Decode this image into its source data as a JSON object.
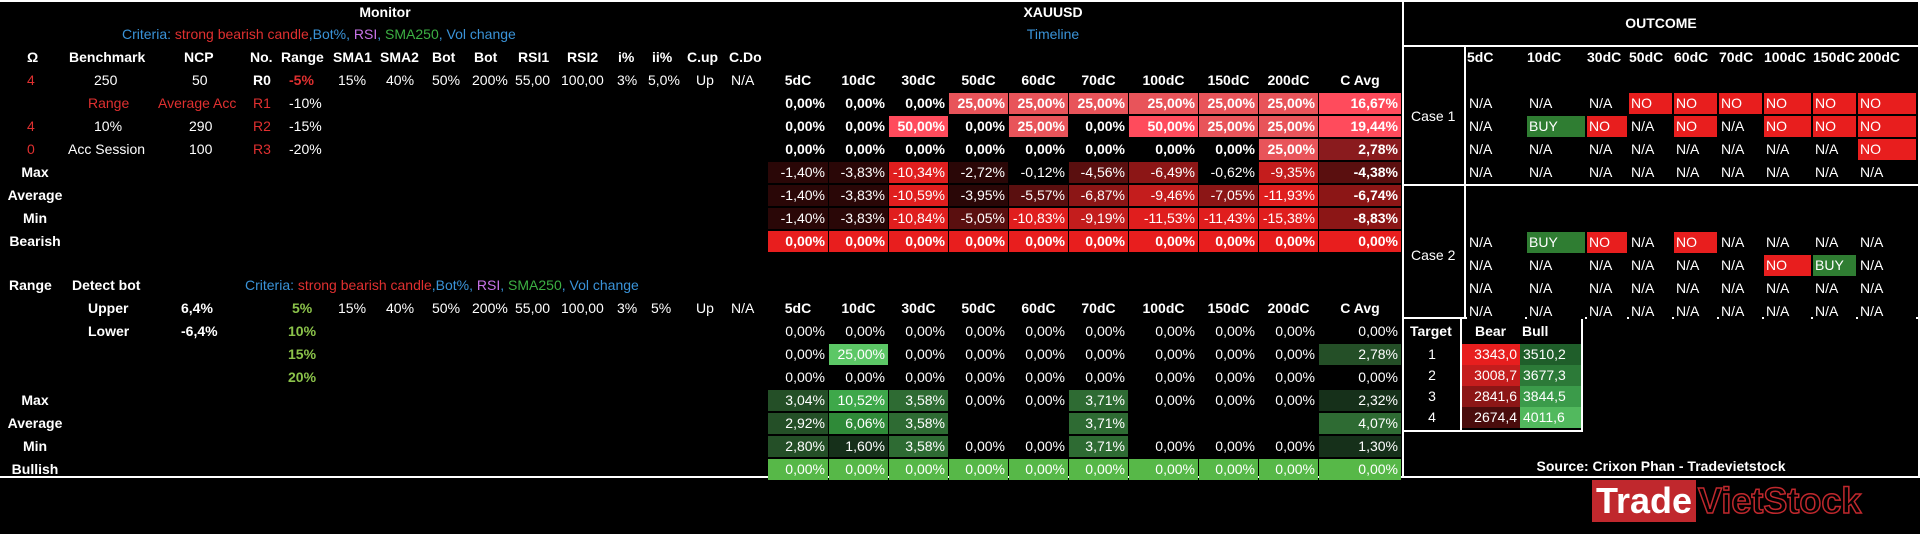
{
  "monitor": {
    "title": "Monitor",
    "criteria": [
      {
        "text": "Criteria: ",
        "color": "#3a93d8"
      },
      {
        "text": "strong bearish candle",
        "color": "#e03030"
      },
      {
        "text": ",Bot%, ",
        "color": "#3a93d8"
      },
      {
        "text": "RSI",
        "color": "#c873e8"
      },
      {
        "text": ", ",
        "color": "#3a93d8"
      },
      {
        "text": "SMA250",
        "color": "#3cb043"
      },
      {
        "text": ", Vol change",
        "color": "#3a93d8"
      }
    ],
    "headers": [
      "Ω",
      "Benchmark",
      "NCP",
      "No.",
      "Range",
      "SMA1",
      "SMA2",
      "Bot",
      "Bot",
      "RSI1",
      "RSI2",
      "i%",
      "ii%",
      "C.up",
      "C.Do"
    ],
    "row0": [
      "4",
      "250",
      "50",
      "R0",
      "-5%",
      "15%",
      "40%",
      "50%",
      "200%",
      "55,00",
      "100,00",
      "3%",
      "5,0%",
      "Up",
      "N/A"
    ],
    "row1": [
      "",
      "Range",
      "Average Acc",
      "R1",
      "-10%"
    ],
    "row2": [
      "4",
      "10%",
      "290",
      "R2",
      "-15%"
    ],
    "row3": [
      "0",
      "Acc Session",
      "100",
      "R3",
      "-20%"
    ],
    "stat_labels": [
      "Max",
      "Average",
      "Min",
      "Bearish"
    ]
  },
  "detect": {
    "headers": [
      "Range",
      "Detect bot"
    ],
    "criteria": [
      {
        "text": "Criteria: ",
        "color": "#3a93d8"
      },
      {
        "text": "strong bearish candle",
        "color": "#e03030"
      },
      {
        "text": ",Bot%, ",
        "color": "#3a93d8"
      },
      {
        "text": "RSI",
        "color": "#c873e8"
      },
      {
        "text": ", ",
        "color": "#3a93d8"
      },
      {
        "text": "SMA250",
        "color": "#3cb043"
      },
      {
        "text": ", Vol change",
        "color": "#3a93d8"
      }
    ],
    "upper_label": "Upper",
    "upper_value": "6,4%",
    "lower_label": "Lower",
    "lower_value": "-6,4%",
    "levels": [
      "5%",
      "10%",
      "15%",
      "20%"
    ],
    "params": [
      "15%",
      "40%",
      "50%",
      "200%",
      "55,00",
      "100,00",
      "3%",
      "5%",
      "Up",
      "N/A"
    ],
    "stat_labels": [
      "Max",
      "Average",
      "Min",
      "Bullish"
    ]
  },
  "xauusd": {
    "title": "XAUUSD",
    "subtitle": "Timeline",
    "columns": [
      "5dC",
      "10dC",
      "30dC",
      "50dC",
      "60dC",
      "70dC",
      "100dC",
      "150dC",
      "200dC",
      "C Avg"
    ],
    "bear_rows": [
      [
        "0,00%",
        "0,00%",
        "0,00%",
        "25,00%",
        "25,00%",
        "25,00%",
        "25,00%",
        "25,00%",
        "25,00%",
        "16,67%"
      ],
      [
        "0,00%",
        "0,00%",
        "50,00%",
        "0,00%",
        "25,00%",
        "0,00%",
        "50,00%",
        "25,00%",
        "25,00%",
        "19,44%"
      ],
      [
        "0,00%",
        "0,00%",
        "0,00%",
        "0,00%",
        "0,00%",
        "0,00%",
        "0,00%",
        "0,00%",
        "25,00%",
        "2,78%"
      ]
    ],
    "bear_stats": [
      [
        "-1,40%",
        "-3,83%",
        "-10,34%",
        "-2,72%",
        "-0,12%",
        "-4,56%",
        "-6,49%",
        "-0,62%",
        "-9,35%",
        "-4,38%"
      ],
      [
        "-1,40%",
        "-3,83%",
        "-10,59%",
        "-3,95%",
        "-5,57%",
        "-6,87%",
        "-9,46%",
        "-7,05%",
        "-11,93%",
        "-6,74%"
      ],
      [
        "-1,40%",
        "-3,83%",
        "-10,84%",
        "-5,05%",
        "-10,83%",
        "-9,19%",
        "-11,53%",
        "-11,43%",
        "-15,38%",
        "-8,83%"
      ]
    ],
    "bearish_row": [
      "0,00%",
      "0,00%",
      "0,00%",
      "0,00%",
      "0,00%",
      "0,00%",
      "0,00%",
      "0,00%",
      "0,00%",
      "0,00%"
    ],
    "bull_rows": [
      [
        "0,00%",
        "0,00%",
        "0,00%",
        "0,00%",
        "0,00%",
        "0,00%",
        "0,00%",
        "0,00%",
        "0,00%",
        "0,00%"
      ],
      [
        "0,00%",
        "25,00%",
        "0,00%",
        "0,00%",
        "0,00%",
        "0,00%",
        "0,00%",
        "0,00%",
        "0,00%",
        "2,78%"
      ],
      [
        "0,00%",
        "0,00%",
        "0,00%",
        "0,00%",
        "0,00%",
        "0,00%",
        "0,00%",
        "0,00%",
        "0,00%",
        "0,00%"
      ]
    ],
    "bull_stats": [
      [
        "3,04%",
        "10,52%",
        "3,58%",
        "0,00%",
        "0,00%",
        "3,71%",
        "0,00%",
        "0,00%",
        "0,00%",
        "2,32%"
      ],
      [
        "2,92%",
        "6,06%",
        "3,58%",
        "",
        "",
        "3,71%",
        "",
        "",
        "",
        "4,07%"
      ],
      [
        "2,80%",
        "1,60%",
        "3,58%",
        "0,00%",
        "0,00%",
        "3,71%",
        "0,00%",
        "0,00%",
        "0,00%",
        "1,30%"
      ]
    ],
    "bullish_row": [
      "0,00%",
      "0,00%",
      "0,00%",
      "0,00%",
      "0,00%",
      "0,00%",
      "0,00%",
      "0,00%",
      "0,00%",
      "0,00%"
    ]
  },
  "outcome": {
    "title": "OUTCOME",
    "columns": [
      "5dC",
      "10dC",
      "30dC",
      "50dC",
      "60dC",
      "70dC",
      "100dC",
      "150dC",
      "200dC"
    ],
    "case1_label": "Case 1",
    "case1": [
      [
        "N/A",
        "N/A",
        "N/A",
        "NO",
        "NO",
        "NO",
        "NO",
        "NO",
        "NO"
      ],
      [
        "N/A",
        "BUY",
        "NO",
        "N/A",
        "NO",
        "N/A",
        "NO",
        "NO",
        "NO"
      ],
      [
        "N/A",
        "N/A",
        "N/A",
        "N/A",
        "N/A",
        "N/A",
        "N/A",
        "N/A",
        "NO"
      ],
      [
        "N/A",
        "N/A",
        "N/A",
        "N/A",
        "N/A",
        "N/A",
        "N/A",
        "N/A",
        "N/A"
      ]
    ],
    "case2_label": "Case 2",
    "case2": [
      [
        "N/A",
        "BUY",
        "NO",
        "N/A",
        "NO",
        "N/A",
        "N/A",
        "N/A",
        "N/A"
      ],
      [
        "N/A",
        "N/A",
        "N/A",
        "N/A",
        "N/A",
        "N/A",
        "NO",
        "BUY",
        "N/A"
      ],
      [
        "N/A",
        "N/A",
        "N/A",
        "N/A",
        "N/A",
        "N/A",
        "N/A",
        "N/A",
        "N/A"
      ],
      [
        "N/A",
        "N/A",
        "N/A",
        "N/A",
        "N/A",
        "N/A",
        "N/A",
        "N/A",
        "N/A"
      ]
    ],
    "target_headers": [
      "Target",
      "Bear",
      "Bull"
    ],
    "targets": [
      [
        "1",
        "3343,0",
        "3510,2"
      ],
      [
        "2",
        "3008,7",
        "3677,3"
      ],
      [
        "3",
        "2841,6",
        "3844,5"
      ],
      [
        "4",
        "2674,4",
        "4011,6"
      ]
    ],
    "source": "Source: Crixon Phan - Tradevietstock"
  },
  "logo": {
    "word1": "Trade",
    "word2": "VietStock",
    "color1": "#c0282d"
  },
  "colors": {
    "red": "#e03030",
    "blue": "#3a93d8",
    "green": "#3cb043",
    "purple": "#c873e8",
    "bear_hot": "#ff3b3b",
    "bull_hot": "#2e9e3e"
  }
}
